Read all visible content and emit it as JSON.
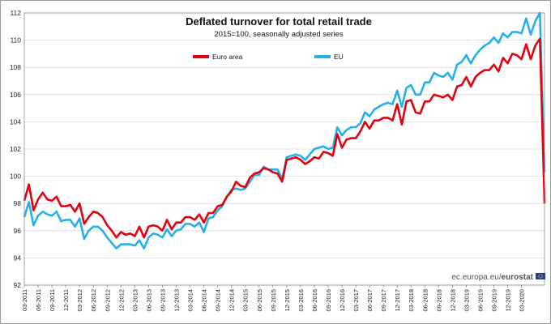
{
  "chart_data": {
    "type": "line",
    "title": "Deflated turnover for total retail trade",
    "subtitle": "2015=100, seasonally adjusted series",
    "ylim": [
      92,
      112
    ],
    "yticks": [
      92,
      94,
      96,
      98,
      100,
      102,
      104,
      106,
      108,
      110,
      112
    ],
    "grid": true,
    "legend_position": "top-center",
    "x_tick_labels": [
      "03-2011",
      "06-2011",
      "09-2011",
      "12-2011",
      "03-2012",
      "06-2012",
      "09-2012",
      "12-2012",
      "03-2013",
      "06-2013",
      "09-2013",
      "12-2013",
      "03-2014",
      "06-2014",
      "09-2014",
      "12-2014",
      "03-2015",
      "06-2015",
      "09-2015",
      "12-2015",
      "03-2016",
      "06-2016",
      "09-2016",
      "12-2016",
      "03-2017",
      "06-2017",
      "09-2017",
      "12-2017",
      "03-2018",
      "06-2018",
      "09-2018",
      "12-2018",
      "03-2019",
      "06-2019",
      "09-2019",
      "12-2019",
      "03-2020"
    ],
    "x_start": "2011-03",
    "source": "ec.europa.eu/",
    "source_bold": "eurostat",
    "series": [
      {
        "name": "Euro area",
        "color": "#e3000f",
        "values": [
          98.2,
          99.4,
          97.5,
          98.3,
          98.8,
          98.3,
          98.2,
          98.5,
          97.8,
          97.8,
          97.9,
          97.4,
          98.0,
          96.5,
          97.0,
          97.4,
          97.3,
          97.0,
          96.4,
          96.0,
          95.5,
          95.9,
          95.7,
          95.8,
          95.6,
          96.3,
          95.5,
          96.3,
          96.4,
          96.3,
          96.0,
          96.8,
          96.1,
          96.6,
          96.6,
          97.0,
          97.0,
          96.8,
          97.2,
          96.6,
          97.3,
          97.3,
          97.8,
          97.9,
          98.5,
          98.9,
          99.6,
          99.3,
          99.2,
          99.9,
          100.2,
          100.3,
          100.6,
          100.5,
          100.3,
          100.2,
          99.6,
          101.2,
          101.3,
          101.4,
          101.2,
          100.9,
          101.1,
          101.4,
          101.3,
          101.8,
          101.7,
          101.5,
          103.1,
          102.1,
          102.7,
          102.8,
          102.8,
          103.3,
          104.0,
          103.5,
          104.1,
          104.1,
          104.3,
          104.3,
          104.1,
          105.3,
          103.8,
          105.5,
          105.6,
          104.7,
          104.6,
          105.5,
          105.5,
          106.0,
          105.9,
          105.8,
          106.0,
          105.6,
          106.6,
          106.7,
          107.3,
          106.6,
          107.3,
          107.6,
          107.8,
          107.8,
          108.2,
          107.7,
          108.7,
          108.3,
          109.0,
          108.9,
          108.6,
          109.7,
          108.6,
          109.6,
          110.1,
          98.0
        ]
      },
      {
        "name": "EU",
        "color": "#26b0e8",
        "values": [
          97.0,
          98.1,
          96.4,
          97.1,
          97.4,
          97.2,
          97.1,
          97.4,
          96.7,
          96.8,
          96.8,
          96.3,
          96.9,
          95.4,
          96.0,
          96.3,
          96.3,
          96.0,
          95.5,
          95.1,
          94.7,
          95.0,
          95.0,
          95.0,
          94.9,
          95.3,
          94.7,
          95.5,
          95.8,
          95.7,
          95.5,
          96.1,
          95.6,
          96.0,
          96.1,
          96.5,
          96.5,
          96.3,
          96.6,
          95.9,
          96.9,
          97.0,
          97.5,
          97.8,
          98.5,
          99.0,
          99.1,
          99.0,
          99.1,
          99.6,
          100.1,
          100.1,
          100.7,
          100.5,
          100.5,
          100.5,
          99.8,
          101.4,
          101.5,
          101.6,
          101.5,
          101.2,
          101.6,
          102.0,
          102.1,
          102.2,
          102.0,
          102.1,
          103.6,
          103.0,
          103.4,
          103.6,
          103.6,
          103.9,
          104.7,
          104.4,
          104.9,
          105.1,
          105.3,
          105.4,
          105.3,
          106.3,
          105.1,
          106.5,
          106.7,
          106.0,
          106.0,
          106.9,
          106.9,
          107.6,
          107.4,
          107.3,
          107.6,
          107.1,
          108.2,
          108.4,
          108.9,
          108.3,
          108.9,
          109.3,
          109.6,
          109.8,
          110.2,
          109.8,
          110.5,
          110.2,
          110.6,
          110.6,
          110.5,
          111.6,
          110.4,
          111.4,
          112.0,
          100.3
        ]
      }
    ]
  }
}
